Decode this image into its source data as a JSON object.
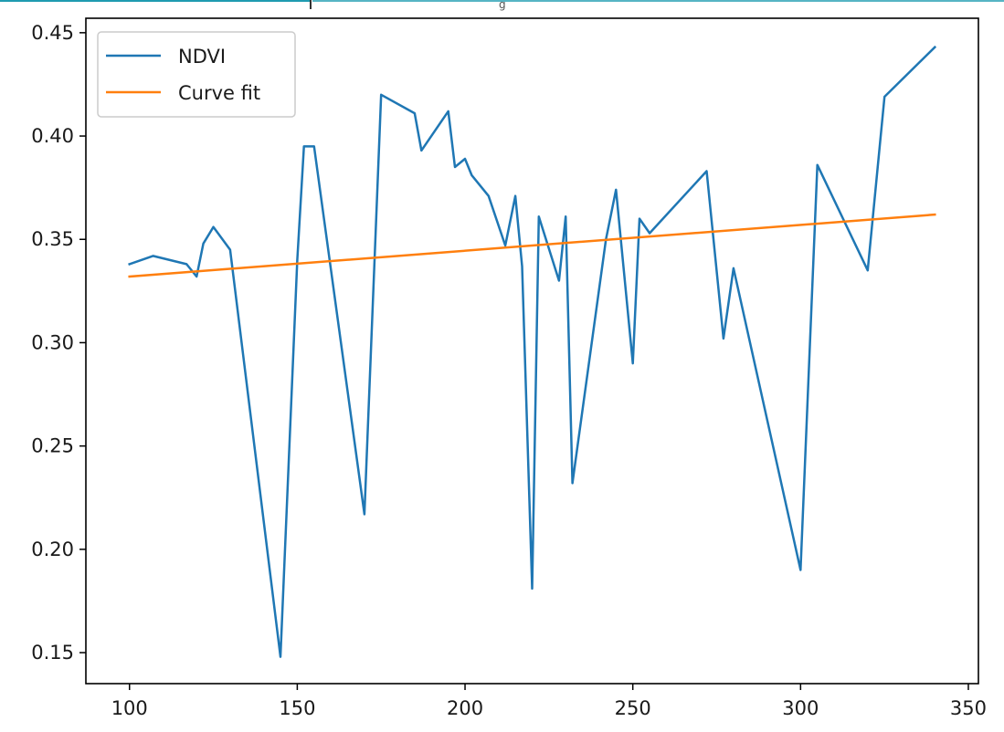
{
  "chart_data": {
    "type": "line",
    "title": "",
    "xlabel": "",
    "ylabel": "",
    "xlim": [
      87,
      353
    ],
    "ylim": [
      0.135,
      0.457
    ],
    "xticks": [
      100,
      150,
      200,
      250,
      300,
      350
    ],
    "xtick_labels": [
      "100",
      "150",
      "200",
      "250",
      "300",
      "350"
    ],
    "yticks": [
      0.15,
      0.2,
      0.25,
      0.3,
      0.35,
      0.4,
      0.45
    ],
    "ytick_labels": [
      "0.15",
      "0.20",
      "0.25",
      "0.30",
      "0.35",
      "0.40",
      "0.45"
    ],
    "grid": false,
    "legend_position": "top-left",
    "series": [
      {
        "name": "NDVI",
        "color": "#1f77b4",
        "x": [
          100,
          107,
          117,
          120,
          122,
          125,
          130,
          145,
          150,
          152,
          155,
          170,
          175,
          185,
          187,
          195,
          197,
          200,
          202,
          207,
          212,
          215,
          217,
          220,
          222,
          228,
          230,
          232,
          242,
          245,
          250,
          252,
          255,
          272,
          277,
          280,
          300,
          305,
          320,
          325,
          340
        ],
        "y": [
          0.338,
          0.342,
          0.338,
          0.332,
          0.348,
          0.356,
          0.345,
          0.148,
          0.34,
          0.395,
          0.395,
          0.217,
          0.42,
          0.411,
          0.393,
          0.412,
          0.385,
          0.389,
          0.381,
          0.371,
          0.347,
          0.371,
          0.337,
          0.181,
          0.361,
          0.33,
          0.361,
          0.232,
          0.35,
          0.374,
          0.29,
          0.36,
          0.353,
          0.383,
          0.302,
          0.336,
          0.19,
          0.386,
          0.335,
          0.419,
          0.443
        ]
      },
      {
        "name": "Curve fit",
        "color": "#ff7f0e",
        "x": [
          100,
          340
        ],
        "y": [
          0.332,
          0.362
        ]
      }
    ]
  },
  "top_strip": {
    "text": "g",
    "color": "#1f9bb0"
  }
}
